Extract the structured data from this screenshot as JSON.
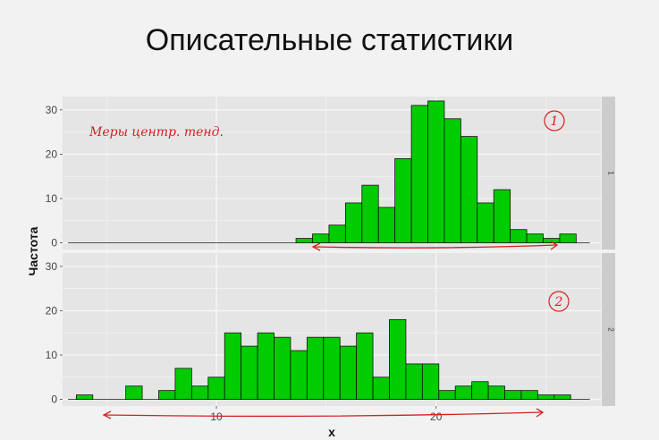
{
  "slide": {
    "title": "Описательные статистики"
  },
  "annotations": {
    "handwritten_note": "Меры центр. тенд.",
    "circled_labels": [
      "1",
      "2"
    ],
    "color": "#d62020"
  },
  "colors": {
    "bar_fill": "#00cc00",
    "bar_stroke": "#111111",
    "panel_bg": "#e5e5e5",
    "grid": "#f7f7f7",
    "strip_bg": "#cccccc"
  },
  "chart_data": {
    "type": "bar",
    "subtype": "faceted-histogram",
    "title": "",
    "xlabel": "x",
    "ylabel": "Частота",
    "xlim": [
      3,
      27.5
    ],
    "ylim": [
      -1.5,
      33
    ],
    "x_ticks": [
      10,
      20
    ],
    "y_ticks": [
      0,
      10,
      20,
      30
    ],
    "grid": true,
    "bin_width": 0.75,
    "panels": [
      {
        "strip_label": "1",
        "bins": [
          {
            "x": 14.0,
            "count": 1
          },
          {
            "x": 14.75,
            "count": 2
          },
          {
            "x": 15.5,
            "count": 4
          },
          {
            "x": 16.25,
            "count": 9
          },
          {
            "x": 17.0,
            "count": 13
          },
          {
            "x": 17.75,
            "count": 8
          },
          {
            "x": 18.5,
            "count": 19
          },
          {
            "x": 19.25,
            "count": 31
          },
          {
            "x": 20.0,
            "count": 32
          },
          {
            "x": 20.75,
            "count": 28
          },
          {
            "x": 21.5,
            "count": 24
          },
          {
            "x": 22.25,
            "count": 9
          },
          {
            "x": 23.0,
            "count": 12
          },
          {
            "x": 23.75,
            "count": 3
          },
          {
            "x": 24.5,
            "count": 2
          },
          {
            "x": 25.25,
            "count": 1
          },
          {
            "x": 26.0,
            "count": 2
          }
        ]
      },
      {
        "strip_label": "2",
        "bins": [
          {
            "x": 4.0,
            "count": 1
          },
          {
            "x": 4.75,
            "count": 0
          },
          {
            "x": 5.5,
            "count": 0
          },
          {
            "x": 6.25,
            "count": 3
          },
          {
            "x": 7.0,
            "count": 0
          },
          {
            "x": 7.75,
            "count": 2
          },
          {
            "x": 8.5,
            "count": 7
          },
          {
            "x": 9.25,
            "count": 3
          },
          {
            "x": 10.0,
            "count": 5
          },
          {
            "x": 10.75,
            "count": 15
          },
          {
            "x": 11.5,
            "count": 12
          },
          {
            "x": 12.25,
            "count": 15
          },
          {
            "x": 13.0,
            "count": 14
          },
          {
            "x": 13.75,
            "count": 11
          },
          {
            "x": 14.5,
            "count": 14
          },
          {
            "x": 15.25,
            "count": 14
          },
          {
            "x": 16.0,
            "count": 12
          },
          {
            "x": 16.75,
            "count": 15
          },
          {
            "x": 17.5,
            "count": 5
          },
          {
            "x": 18.25,
            "count": 18
          },
          {
            "x": 19.0,
            "count": 8
          },
          {
            "x": 19.75,
            "count": 8
          },
          {
            "x": 20.5,
            "count": 2
          },
          {
            "x": 21.25,
            "count": 3
          },
          {
            "x": 22.0,
            "count": 4
          },
          {
            "x": 22.75,
            "count": 3
          },
          {
            "x": 23.5,
            "count": 2
          },
          {
            "x": 24.25,
            "count": 2
          },
          {
            "x": 25.0,
            "count": 1
          },
          {
            "x": 25.75,
            "count": 1
          }
        ]
      }
    ]
  }
}
